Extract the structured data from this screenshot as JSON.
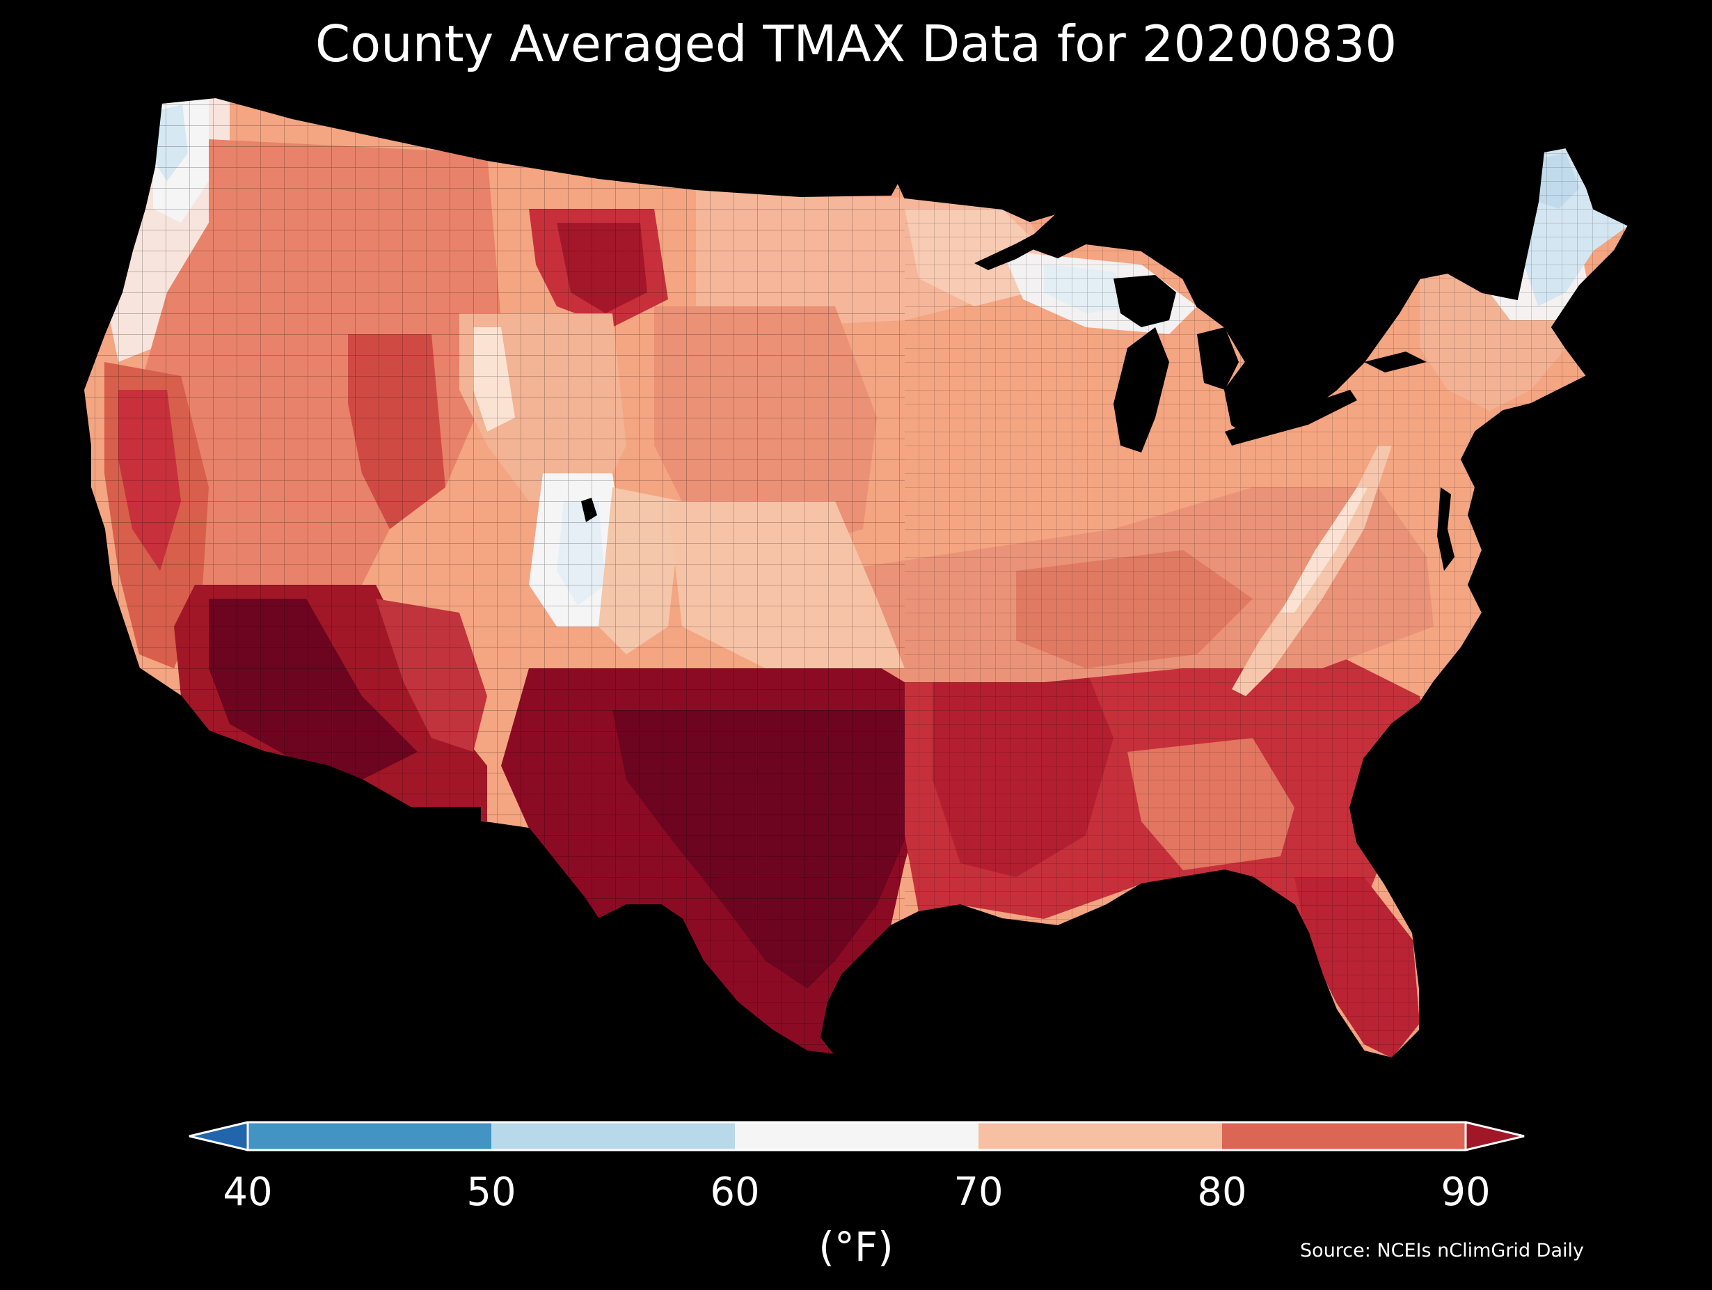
{
  "title": "County Averaged TMAX Data for 20200830",
  "colorbar": {
    "unit_label": "(°F)",
    "ticks": [
      "40",
      "50",
      "60",
      "70",
      "80",
      "90"
    ],
    "bins": [
      {
        "from": 40,
        "to": 50,
        "color": "#4393c3"
      },
      {
        "from": 50,
        "to": 60,
        "color": "#b7d9ea"
      },
      {
        "from": 60,
        "to": 70,
        "color": "#f5f5f5"
      },
      {
        "from": 70,
        "to": 80,
        "color": "#f7c0a3"
      },
      {
        "from": 80,
        "to": 90,
        "color": "#dc6654"
      }
    ],
    "under_color": "#2166ac",
    "over_color": "#a11727",
    "extend": "both"
  },
  "source": "Source: NCEIs nClimGrid Daily",
  "map": {
    "region": "Contiguous United States, county-level choropleth",
    "variable": "TMAX",
    "units": "°F",
    "regional_values": [
      {
        "region": "Maine / northern New England",
        "bin": "50-60"
      },
      {
        "region": "Upper Michigan / northern Wisconsin",
        "bin": "60-70"
      },
      {
        "region": "Western Washington",
        "bin": "60-70"
      },
      {
        "region": "Central Utah high terrain",
        "bin": "60-70"
      },
      {
        "region": "Northern Plains / Upper Midwest",
        "bin": "70-80"
      },
      {
        "region": "Ohio Valley / Mid-Atlantic",
        "bin": "70-80"
      },
      {
        "region": "Appalachians ridge",
        "bin": "70-80"
      },
      {
        "region": "Central Montana",
        "bin": ">90"
      },
      {
        "region": "Central Valley California",
        "bin": "80-90"
      },
      {
        "region": "Arizona deserts",
        "bin": ">90"
      },
      {
        "region": "Texas / southern Plains",
        "bin": ">90"
      },
      {
        "region": "Deep South / Southeast",
        "bin": "80-90"
      },
      {
        "region": "Florida",
        "bin": "80-90"
      }
    ]
  }
}
